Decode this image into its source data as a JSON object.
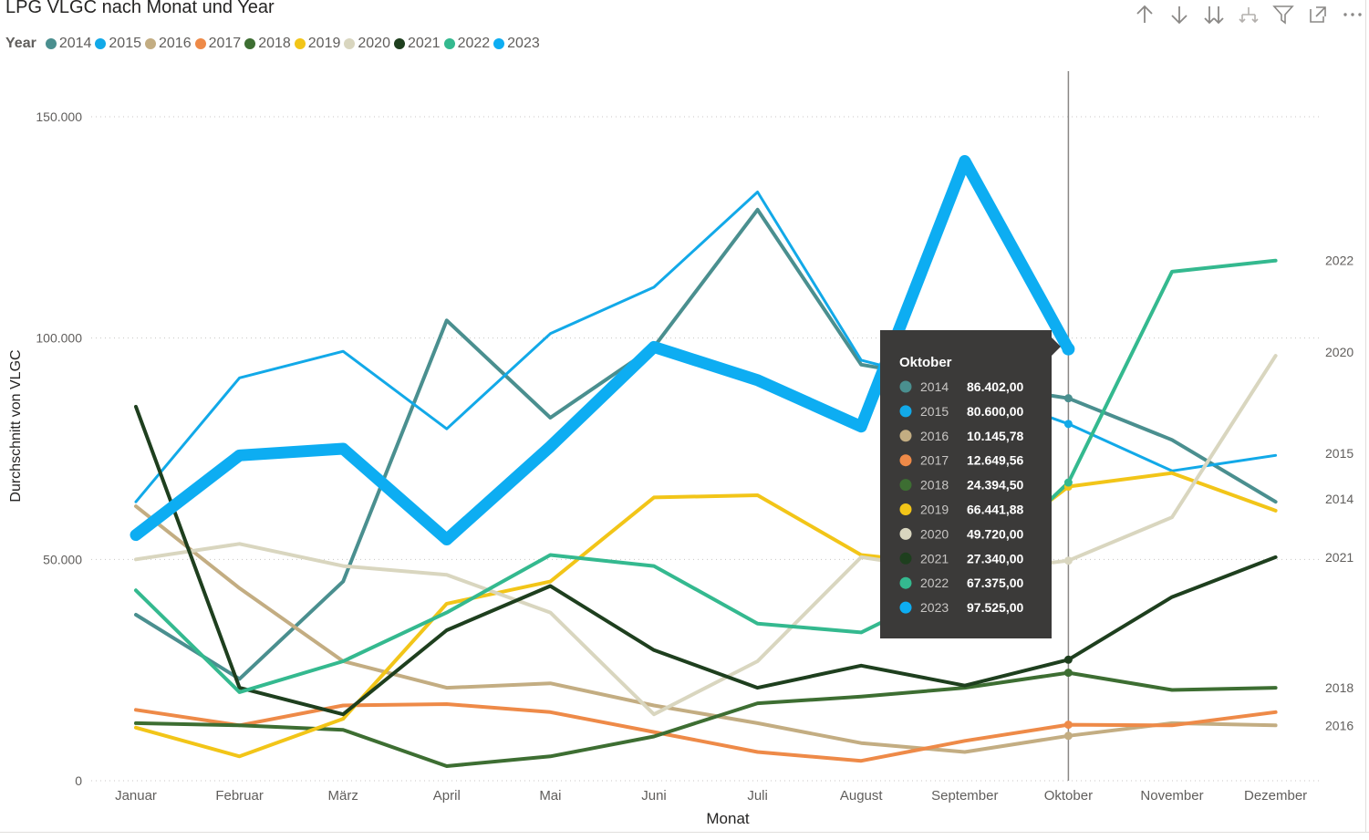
{
  "title": "LPG VLGC nach Monat und Year",
  "legend": {
    "title": "Year",
    "items": [
      {
        "label": "2014",
        "color": "#4A8F8F"
      },
      {
        "label": "2015",
        "color": "#12A9E8"
      },
      {
        "label": "2016",
        "color": "#C3AD82"
      },
      {
        "label": "2017",
        "color": "#EE8A48"
      },
      {
        "label": "2018",
        "color": "#3D6E32"
      },
      {
        "label": "2019",
        "color": "#F2C518"
      },
      {
        "label": "2020",
        "color": "#D9D6BF"
      },
      {
        "label": "2021",
        "color": "#1E3F1E"
      },
      {
        "label": "2022",
        "color": "#34B98F"
      },
      {
        "label": "2023",
        "color": "#0DADF2"
      }
    ]
  },
  "toolbar": [
    "arrow-up-icon",
    "arrow-down-icon",
    "double-arrow-down-icon",
    "expand-hierarchy-icon",
    "filter-icon",
    "focus-mode-icon",
    "more-options-icon"
  ],
  "chart_data": {
    "type": "line",
    "title": "LPG VLGC nach Monat und Year",
    "xlabel": "Monat",
    "ylabel": "Durchschnitt von VLGC",
    "ylim": [
      0,
      150000
    ],
    "grid": true,
    "y_ticks": [
      "0",
      "50.000",
      "100.000",
      "150.000"
    ],
    "y_tick_values": [
      0,
      50000,
      100000,
      150000
    ],
    "categories": [
      "Januar",
      "Februar",
      "März",
      "April",
      "Mai",
      "Juni",
      "Juli",
      "August",
      "September",
      "Oktober",
      "November",
      "Dezember"
    ],
    "series": [
      {
        "name": "2014",
        "color": "#4A8F8F",
        "width": 4,
        "values": [
          37500,
          23000,
          45000,
          104000,
          82000,
          98000,
          129000,
          94000,
          90000,
          86402,
          77000,
          63000
        ]
      },
      {
        "name": "2015",
        "color": "#12A9E8",
        "width": 3,
        "values": [
          63000,
          91000,
          97000,
          79500,
          101000,
          111500,
          133000,
          95000,
          89000,
          80600,
          70000,
          73500
        ]
      },
      {
        "name": "2016",
        "color": "#C3AD82",
        "width": 4,
        "values": [
          62000,
          43500,
          27000,
          21000,
          22000,
          17000,
          13000,
          8500,
          6500,
          10145.78,
          13000,
          12500
        ]
      },
      {
        "name": "2017",
        "color": "#EE8A48",
        "width": 4,
        "values": [
          16000,
          12500,
          17000,
          17300,
          15500,
          11000,
          6500,
          4500,
          9000,
          12649.56,
          12500,
          15500
        ]
      },
      {
        "name": "2018",
        "color": "#3D6E32",
        "width": 4,
        "values": [
          13000,
          12500,
          11500,
          3300,
          5500,
          10000,
          17500,
          19000,
          21000,
          24394.5,
          20500,
          21000
        ]
      },
      {
        "name": "2019",
        "color": "#F2C518",
        "width": 4,
        "values": [
          12000,
          5500,
          14000,
          40000,
          45000,
          64000,
          64500,
          51000,
          48500,
          66441.88,
          69500,
          61000
        ]
      },
      {
        "name": "2020",
        "color": "#D9D6BF",
        "width": 4,
        "values": [
          50000,
          53500,
          48500,
          46500,
          38000,
          15000,
          27000,
          50500,
          47000,
          49720,
          59500,
          96000
        ]
      },
      {
        "name": "2021",
        "color": "#1E3F1E",
        "width": 4,
        "values": [
          84500,
          21000,
          15000,
          34000,
          44000,
          29500,
          21000,
          26000,
          21500,
          27340,
          41500,
          50500
        ]
      },
      {
        "name": "2022",
        "color": "#34B98F",
        "width": 4,
        "values": [
          43000,
          20000,
          27000,
          38000,
          51000,
          48500,
          35500,
          33500,
          45000,
          67375,
          115000,
          117500
        ]
      },
      {
        "name": "2023",
        "color": "#0DADF2",
        "width": 13,
        "values": [
          55500,
          73500,
          75000,
          54500,
          75500,
          98000,
          90500,
          80000,
          140000,
          97525,
          null,
          null
        ]
      }
    ],
    "end_labels": [
      {
        "label": "2022",
        "value": 117500
      },
      {
        "label": "2020",
        "value": 96000
      },
      {
        "label": "2015",
        "value": 74000
      },
      {
        "label": "2014",
        "value": 63000
      },
      {
        "label": "2021",
        "value": 50500
      },
      {
        "label": "2018",
        "value": 21000
      },
      {
        "label": "2016",
        "value": 12500
      }
    ],
    "crosshair_category": "Oktober",
    "tooltip": {
      "title": "Oktober",
      "rows": [
        {
          "year": "2014",
          "value": "86.402,00",
          "color": "#4A8F8F"
        },
        {
          "year": "2015",
          "value": "80.600,00",
          "color": "#12A9E8"
        },
        {
          "year": "2016",
          "value": "10.145,78",
          "color": "#C3AD82"
        },
        {
          "year": "2017",
          "value": "12.649,56",
          "color": "#EE8A48"
        },
        {
          "year": "2018",
          "value": "24.394,50",
          "color": "#3D6E32"
        },
        {
          "year": "2019",
          "value": "66.441,88",
          "color": "#F2C518"
        },
        {
          "year": "2020",
          "value": "49.720,00",
          "color": "#D9D6BF"
        },
        {
          "year": "2021",
          "value": "27.340,00",
          "color": "#1E3F1E"
        },
        {
          "year": "2022",
          "value": "67.375,00",
          "color": "#34B98F"
        },
        {
          "year": "2023",
          "value": "97.525,00",
          "color": "#0DADF2"
        }
      ]
    }
  }
}
